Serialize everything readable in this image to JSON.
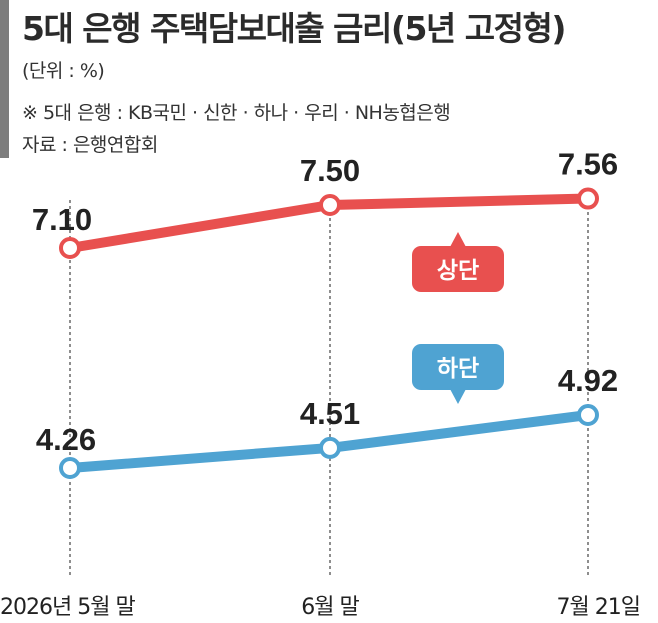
{
  "header": {
    "title": "5대 은행 주택담보대출 금리(5년 고정형)",
    "unit": "(단위 : %)",
    "note": "※ 5대 은행 : KB국민 · 신한 · 하나 · 우리 · NH농협은행",
    "source": "자료 : 은행연합회"
  },
  "chart_data": {
    "type": "line",
    "categories": [
      "2026년 5월 말",
      "6월 말",
      "7월 21일"
    ],
    "series": [
      {
        "name": "상단",
        "values": [
          7.1,
          7.5,
          7.56
        ],
        "labels": [
          "7.10",
          "7.50",
          "7.56"
        ],
        "color": "#e8504f"
      },
      {
        "name": "하단",
        "values": [
          4.26,
          4.51,
          4.92
        ],
        "labels": [
          "4.26",
          "4.51",
          "4.92"
        ],
        "color": "#4fa3d2"
      }
    ],
    "grid": false,
    "legend": "inline badges"
  }
}
